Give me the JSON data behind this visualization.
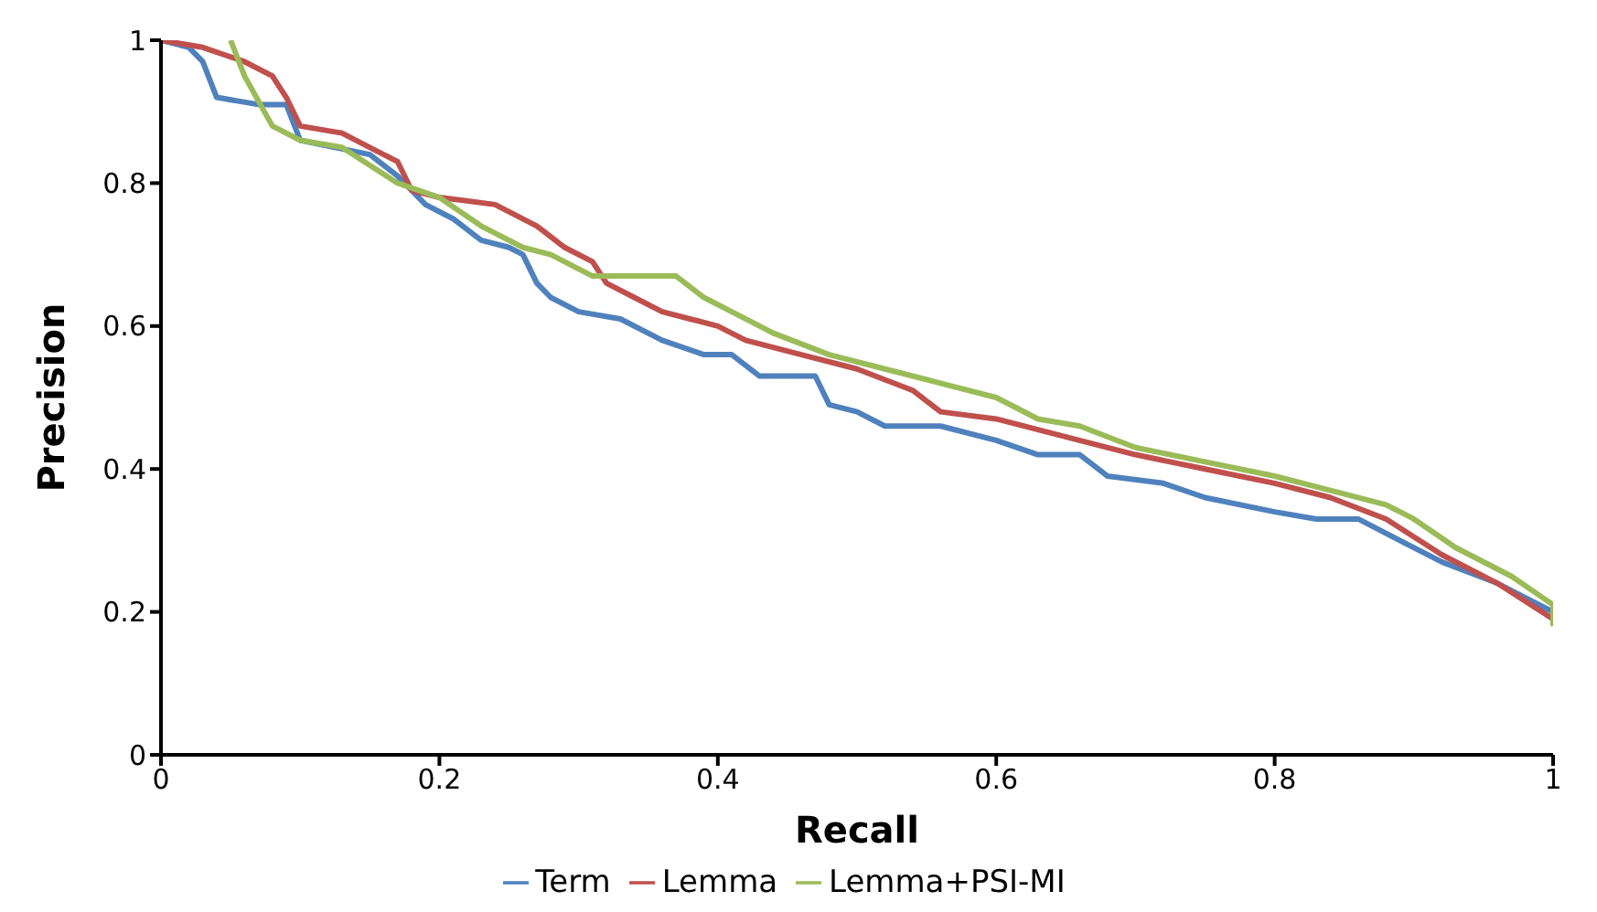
{
  "chart_data": {
    "type": "line",
    "xlabel": "Recall",
    "ylabel": "Precision",
    "xlim": [
      0,
      1
    ],
    "ylim": [
      0,
      1
    ],
    "xticks": [
      0,
      0.2,
      0.4,
      0.6,
      0.8,
      1
    ],
    "yticks": [
      0,
      0.2,
      0.4,
      0.6,
      0.8,
      1
    ],
    "grid": false,
    "legend": "bottom",
    "marker": "none",
    "line_style": "solid",
    "series": [
      {
        "name": "Term",
        "color": "#4f81bd",
        "x": [
          0,
          0.02,
          0.03,
          0.04,
          0.07,
          0.09,
          0.1,
          0.15,
          0.17,
          0.19,
          0.21,
          0.23,
          0.25,
          0.26,
          0.27,
          0.28,
          0.3,
          0.33,
          0.36,
          0.39,
          0.41,
          0.43,
          0.47,
          0.48,
          0.5,
          0.52,
          0.56,
          0.6,
          0.63,
          0.66,
          0.68,
          0.72,
          0.75,
          0.8,
          0.83,
          0.86,
          0.88,
          0.92,
          0.96,
          1
        ],
        "values": [
          1,
          0.99,
          0.97,
          0.92,
          0.91,
          0.91,
          0.86,
          0.84,
          0.81,
          0.77,
          0.75,
          0.72,
          0.71,
          0.7,
          0.66,
          0.64,
          0.62,
          0.61,
          0.58,
          0.56,
          0.56,
          0.53,
          0.53,
          0.49,
          0.48,
          0.46,
          0.46,
          0.44,
          0.42,
          0.42,
          0.39,
          0.38,
          0.36,
          0.34,
          0.33,
          0.33,
          0.31,
          0.27,
          0.24,
          0.2
        ]
      },
      {
        "name": "Lemma",
        "color": "#c0504d",
        "x": [
          0,
          0.03,
          0.06,
          0.08,
          0.09,
          0.1,
          0.13,
          0.15,
          0.17,
          0.18,
          0.2,
          0.24,
          0.27,
          0.29,
          0.31,
          0.32,
          0.34,
          0.36,
          0.38,
          0.4,
          0.42,
          0.46,
          0.5,
          0.54,
          0.56,
          0.6,
          0.64,
          0.7,
          0.75,
          0.8,
          0.84,
          0.88,
          0.92,
          0.96,
          1
        ],
        "values": [
          1,
          0.99,
          0.97,
          0.95,
          0.92,
          0.88,
          0.87,
          0.85,
          0.83,
          0.79,
          0.78,
          0.77,
          0.74,
          0.71,
          0.69,
          0.66,
          0.64,
          0.62,
          0.61,
          0.6,
          0.58,
          0.56,
          0.54,
          0.51,
          0.48,
          0.47,
          0.45,
          0.42,
          0.4,
          0.38,
          0.36,
          0.33,
          0.28,
          0.24,
          0.19
        ]
      },
      {
        "name": "Lemma+PSI-MI",
        "color": "#9bbb59",
        "x": [
          0.05,
          0.06,
          0.08,
          0.1,
          0.13,
          0.17,
          0.2,
          0.23,
          0.26,
          0.28,
          0.31,
          0.34,
          0.37,
          0.39,
          0.41,
          0.44,
          0.48,
          0.52,
          0.56,
          0.6,
          0.63,
          0.66,
          0.7,
          0.75,
          0.8,
          0.84,
          0.88,
          0.9,
          0.93,
          0.97,
          1,
          1
        ],
        "values": [
          1,
          0.95,
          0.88,
          0.86,
          0.85,
          0.8,
          0.78,
          0.74,
          0.71,
          0.7,
          0.67,
          0.67,
          0.67,
          0.64,
          0.62,
          0.59,
          0.56,
          0.54,
          0.52,
          0.5,
          0.47,
          0.46,
          0.43,
          0.41,
          0.39,
          0.37,
          0.35,
          0.33,
          0.29,
          0.25,
          0.21,
          0.18
        ]
      }
    ]
  }
}
